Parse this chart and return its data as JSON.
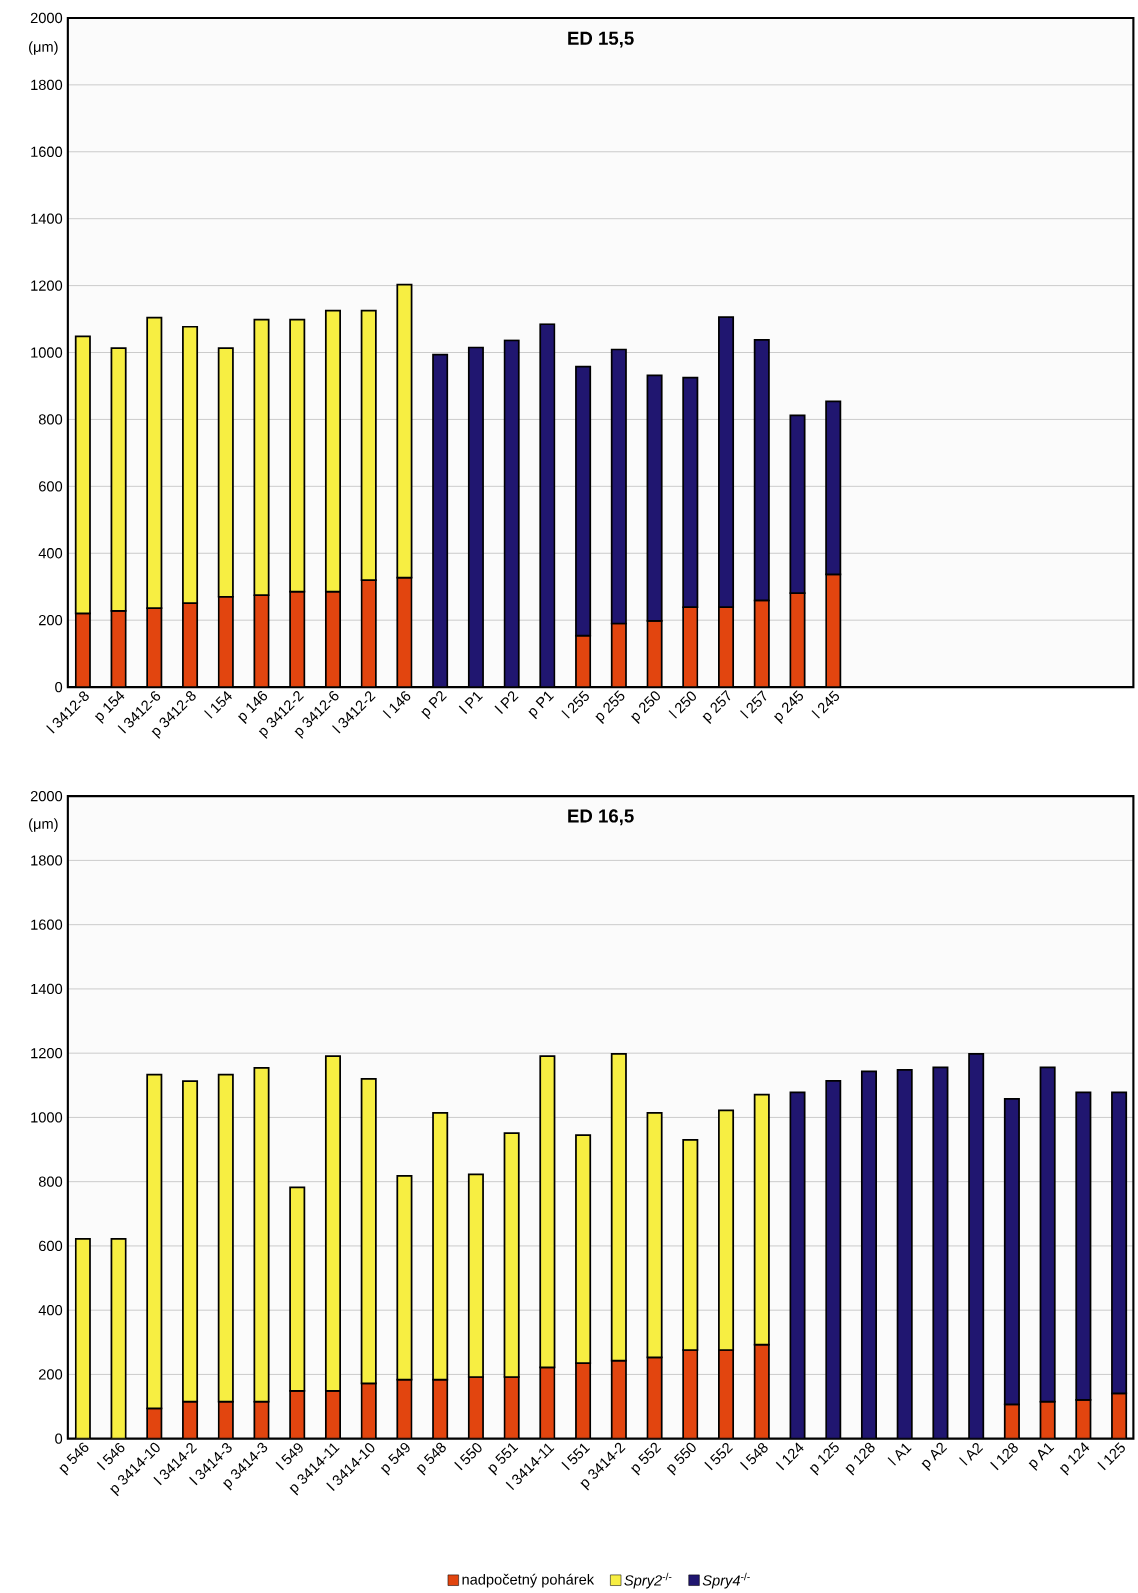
{
  "chart_data": [
    {
      "type": "bar",
      "title": "ED 15,5",
      "ylabel": "(μm)",
      "stacked": true,
      "grid": "y",
      "ylim": [
        0,
        2000
      ],
      "yticks": [
        0,
        200,
        400,
        600,
        800,
        1000,
        1200,
        1400,
        1600,
        1800,
        2000
      ],
      "categories": [
        "l 3412-8",
        "p 154",
        "l 3412-6",
        "p 3412-8",
        "l 154",
        "p 146",
        "p 3412-2",
        "p 3412-6",
        "l 3412-2",
        "l 146",
        "p P2",
        "l P1",
        "l P2",
        "p P1",
        "l 255",
        "p 255",
        "p 250",
        "l 250",
        "p 257",
        "l 257",
        "p 245",
        "l 245"
      ],
      "series": [
        {
          "color": "#e2450f",
          "values": [
            220,
            228,
            236,
            251,
            270,
            275,
            285,
            285,
            320,
            327,
            null,
            null,
            null,
            null,
            154,
            190,
            198,
            239,
            239,
            259,
            281,
            337
          ]
        },
        {
          "color": "#f7ee42",
          "values": [
            828,
            785,
            868,
            826,
            743,
            823,
            813,
            840,
            805,
            876,
            null,
            null,
            null,
            null,
            null,
            null,
            null,
            null,
            null,
            null,
            null,
            null
          ]
        },
        {
          "color": "#201670",
          "values": [
            null,
            null,
            null,
            null,
            null,
            null,
            null,
            null,
            null,
            null,
            994,
            1015,
            1036,
            1085,
            804,
            819,
            734,
            686,
            867,
            779,
            531,
            517
          ]
        }
      ]
    },
    {
      "type": "bar",
      "title": "ED 16,5",
      "ylabel": "(μm)",
      "stacked": true,
      "grid": "y",
      "legend": "bottom",
      "ylim": [
        0,
        2000
      ],
      "yticks": [
        0,
        200,
        400,
        600,
        800,
        1000,
        1200,
        1400,
        1600,
        1800,
        2000
      ],
      "categories": [
        "p 546",
        "l 546",
        "p 3414-10",
        "l 3414-2",
        "l 3414-3",
        "p 3414-3",
        "l 549",
        "p 3414-11",
        "l 3414-10",
        "p 549",
        "p 548",
        "l 550",
        "p 551",
        "l 3414-11",
        "l 551",
        "p 3414-2",
        "p 552",
        "p 550",
        "l 552",
        "l 548",
        "l 124",
        "p 125",
        "p 128",
        "l A1",
        "p A2",
        "l A2",
        "l 128",
        "p A1",
        "p 124",
        "l 125"
      ],
      "series": [
        {
          "name": "nadpočetný pohárek",
          "color": "#e2450f",
          "values": [
            null,
            null,
            94,
            115,
            115,
            115,
            149,
            149,
            172,
            184,
            184,
            192,
            192,
            222,
            235,
            243,
            253,
            276,
            276,
            293,
            null,
            null,
            null,
            null,
            null,
            null,
            107,
            115,
            121,
            141
          ]
        },
        {
          "name": "*Spry2*$^{-/-}$",
          "color": "#f7ee42",
          "values": [
            622,
            622,
            1039,
            998,
            1018,
            1039,
            633,
            1042,
            948,
            634,
            830,
            631,
            759,
            969,
            710,
            955,
            761,
            654,
            746,
            778,
            null,
            null,
            null,
            null,
            null,
            null,
            null,
            null,
            null,
            null
          ]
        },
        {
          "name": "*Spry4*$^{-/-}$",
          "color": "#201670",
          "values": [
            null,
            null,
            null,
            null,
            null,
            null,
            null,
            null,
            null,
            null,
            null,
            null,
            null,
            null,
            null,
            null,
            null,
            null,
            null,
            null,
            1078,
            1114,
            1143,
            1148,
            1156,
            1198,
            951,
            1041,
            957,
            937
          ]
        }
      ]
    }
  ]
}
